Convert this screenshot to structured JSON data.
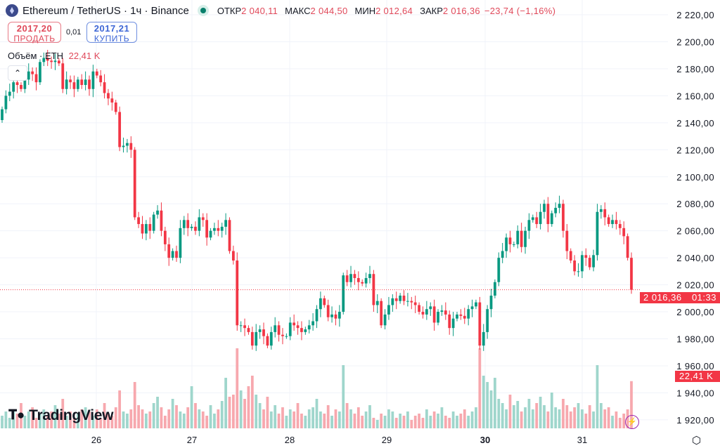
{
  "header": {
    "symbol": "Ethereum / TetherUS · 1ч · Binance",
    "icon": "ethereum-icon",
    "open_label": "ОТКР",
    "open": "2 040,11",
    "high_label": "МАКС",
    "high": "2 044,50",
    "low_label": "МИН",
    "low": "2 012,64",
    "close_label": "ЗАКР",
    "close": "2 016,36",
    "change": "−23,74 (−1,16%)"
  },
  "trade": {
    "sell_price": "2017,20",
    "sell_label": "ПРОДАТЬ",
    "spread": "0,01",
    "buy_price": "2017,21",
    "buy_label": "КУПИТЬ"
  },
  "volume_legend": {
    "label": "Объём · ETH",
    "value": "22,41 K"
  },
  "price_label": {
    "value": "2 016,36",
    "countdown": "01:33"
  },
  "volume_label": "22,41 K",
  "logo": "TradingView",
  "colors": {
    "up": "#089981",
    "down": "#f23645",
    "up_volume": "#9fd6cc",
    "down_volume": "#f7a8ae"
  },
  "chart_data": {
    "type": "candlestick",
    "interval": "1h",
    "ylim": [
      1910,
      2230
    ],
    "y_ticks": [
      "2 220,00",
      "2 200,00",
      "2 180,00",
      "2 160,00",
      "2 140,00",
      "2 120,00",
      "2 100,00",
      "2 080,00",
      "2 060,00",
      "2 040,00",
      "2 020,00",
      "2 000,00",
      "1 980,00",
      "1 960,00",
      "1 940,00",
      "1 920,00"
    ],
    "y_tick_values": [
      2220,
      2200,
      2180,
      2160,
      2140,
      2120,
      2100,
      2080,
      2060,
      2040,
      2020,
      2000,
      1980,
      1960,
      1940,
      1920
    ],
    "x_ticks": [
      "26",
      "27",
      "28",
      "29",
      "30",
      "31"
    ],
    "first_open": 2142,
    "closes": [
      2150,
      2160,
      2163,
      2170,
      2168,
      2165,
      2172,
      2178,
      2176,
      2170,
      2185,
      2188,
      2186,
      2185,
      2186,
      2184,
      2165,
      2172,
      2170,
      2165,
      2172,
      2168,
      2172,
      2165,
      2178,
      2175,
      2170,
      2162,
      2158,
      2155,
      2148,
      2122,
      2123,
      2125,
      2120,
      2070,
      2065,
      2058,
      2065,
      2060,
      2072,
      2075,
      2060,
      2050,
      2040,
      2045,
      2040,
      2062,
      2068,
      2062,
      2063,
      2060,
      2070,
      2068,
      2055,
      2060,
      2062,
      2060,
      2063,
      2068,
      2045,
      2038,
      1990,
      1990,
      1988,
      1985,
      1975,
      1985,
      1987,
      1982,
      1975,
      1985,
      1990,
      1983,
      1982,
      1982,
      1992,
      1990,
      1988,
      1985,
      1987,
      1990,
      1993,
      2002,
      2010,
      2005,
      1996,
      1998,
      1995,
      2000,
      2027,
      2022,
      2028,
      2025,
      2022,
      2021,
      2025,
      2028,
      2005,
      2008,
      1990,
      1998,
      2005,
      2010,
      2008,
      2012,
      2008,
      2008,
      2007,
      2005,
      2000,
      1998,
      2002,
      2004,
      1992,
      2000,
      2001,
      1998,
      1988,
      1995,
      1998,
      1997,
      1995,
      2002,
      2004,
      2007,
      1975,
      1985,
      2002,
      2012,
      2022,
      2040,
      2045,
      2055,
      2050,
      2050,
      2060,
      2048,
      2060,
      2068,
      2070,
      2065,
      2074,
      2080,
      2065,
      2073,
      2077,
      2080,
      2060,
      2045,
      2038,
      2030,
      2030,
      2042,
      2040,
      2033,
      2042,
      2074,
      2076,
      2070,
      2065,
      2068,
      2065,
      2062,
      2056,
      2040,
      2016.36
    ],
    "volumes_k": [
      6,
      8,
      5,
      9,
      7,
      12,
      6,
      8,
      10,
      5,
      7,
      9,
      6,
      8,
      11,
      7,
      14,
      6,
      8,
      5,
      7,
      9,
      10,
      8,
      6,
      9,
      5,
      12,
      7,
      6,
      10,
      18,
      8,
      7,
      9,
      22,
      11,
      9,
      7,
      8,
      12,
      15,
      10,
      6,
      9,
      14,
      11,
      8,
      7,
      10,
      20,
      12,
      9,
      8,
      6,
      11,
      7,
      9,
      13,
      24,
      15,
      16,
      38,
      18,
      14,
      20,
      25,
      16,
      12,
      9,
      15,
      8,
      11,
      7,
      10,
      6,
      9,
      8,
      12,
      7,
      6,
      9,
      10,
      14,
      8,
      7,
      11,
      6,
      9,
      8,
      30,
      12,
      9,
      7,
      10,
      6,
      8,
      11,
      5,
      4,
      7,
      6,
      9,
      8,
      5,
      7,
      6,
      8,
      4,
      6,
      7,
      5,
      9,
      6,
      8,
      7,
      10,
      6,
      5,
      8,
      6,
      7,
      9,
      6,
      8,
      10,
      38,
      25,
      22,
      18,
      24,
      14,
      12,
      9,
      16,
      11,
      13,
      8,
      10,
      14,
      9,
      12,
      15,
      11,
      8,
      17,
      10,
      9,
      14,
      11,
      8,
      10,
      12,
      9,
      7,
      11,
      8,
      30,
      12,
      9,
      10,
      6,
      8,
      5,
      7,
      9,
      22.41
    ],
    "last_price": 2016.36
  }
}
